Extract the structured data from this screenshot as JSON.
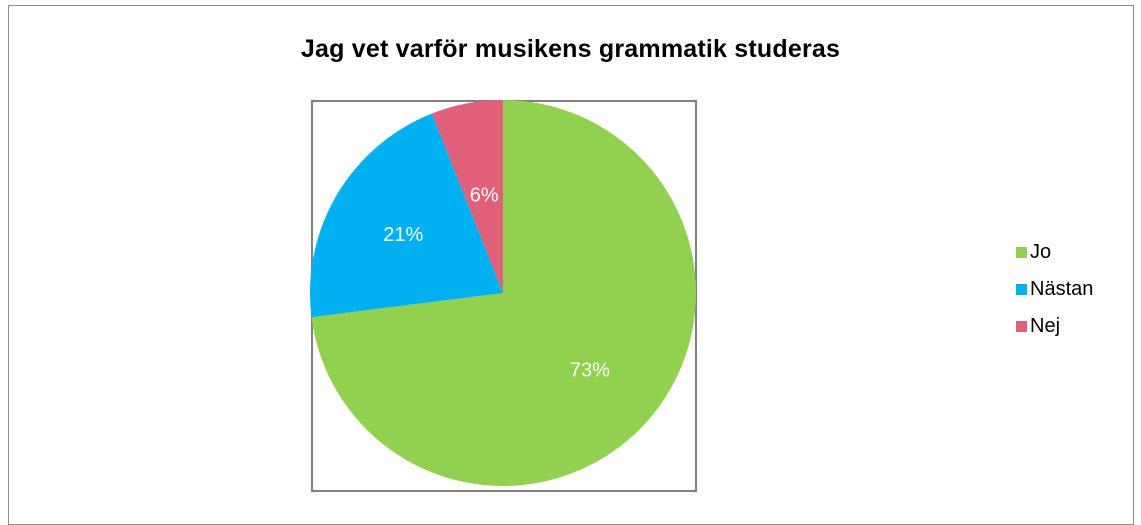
{
  "chart_data": {
    "type": "pie",
    "title": "Jag vet varför musikens grammatik studeras",
    "categories": [
      "Jo",
      "Nästan",
      "Nej"
    ],
    "values": [
      73,
      21,
      6
    ],
    "data_labels": [
      "73%",
      "21%",
      "6%"
    ],
    "colors": [
      "#92d050",
      "#00b0f0",
      "#e0607a"
    ],
    "label_color": "#ffffff",
    "legend_position": "right"
  }
}
